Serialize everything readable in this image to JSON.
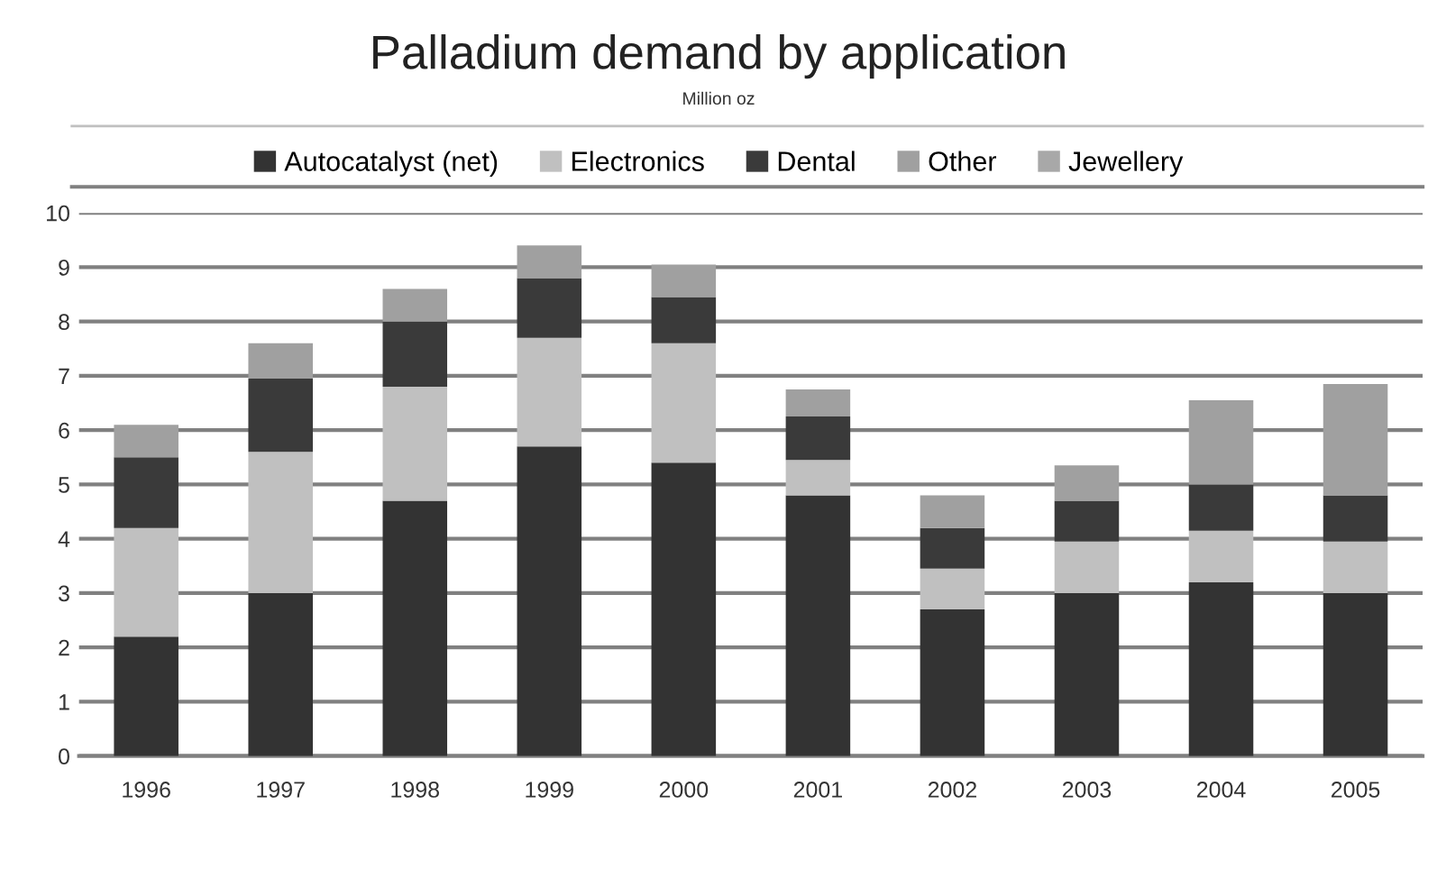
{
  "chart_data": {
    "type": "bar",
    "title": "Palladium demand by application",
    "subtitle": "Million oz",
    "categories": [
      "1996",
      "1997",
      "1998",
      "1999",
      "2000",
      "2001",
      "2002",
      "2003",
      "2004",
      "2005"
    ],
    "stacked": true,
    "series": [
      {
        "name": "Autocatalyst (net)",
        "color": "#333333",
        "values": [
          2.2,
          3.0,
          4.7,
          5.7,
          5.4,
          4.8,
          2.7,
          3.0,
          3.2,
          3.0
        ]
      },
      {
        "name": "Electronics",
        "color": "#c0c0c0",
        "values": [
          2.0,
          2.6,
          2.1,
          2.0,
          2.2,
          0.65,
          0.75,
          0.95,
          0.95,
          0.95
        ]
      },
      {
        "name": "Dental",
        "color": "#3a3a3a",
        "values": [
          1.3,
          1.35,
          1.2,
          1.1,
          0.85,
          0.8,
          0.75,
          0.75,
          0.85,
          0.85
        ]
      },
      {
        "name": "Other",
        "color": "#a0a0a0",
        "values": [
          0.6,
          0.65,
          0.6,
          0.6,
          0.6,
          0.5,
          0.6,
          0.65,
          1.55,
          2.05
        ]
      },
      {
        "name": "Jewellery",
        "color": "#a8a8a8",
        "values": [
          null,
          null,
          null,
          null,
          null,
          null,
          null,
          null,
          null,
          null
        ]
      }
    ],
    "ylim": [
      0,
      10
    ],
    "yticks": [
      0,
      1,
      2,
      3,
      4,
      5,
      6,
      7,
      8,
      9,
      10
    ],
    "grid": "y",
    "legend": "top"
  }
}
